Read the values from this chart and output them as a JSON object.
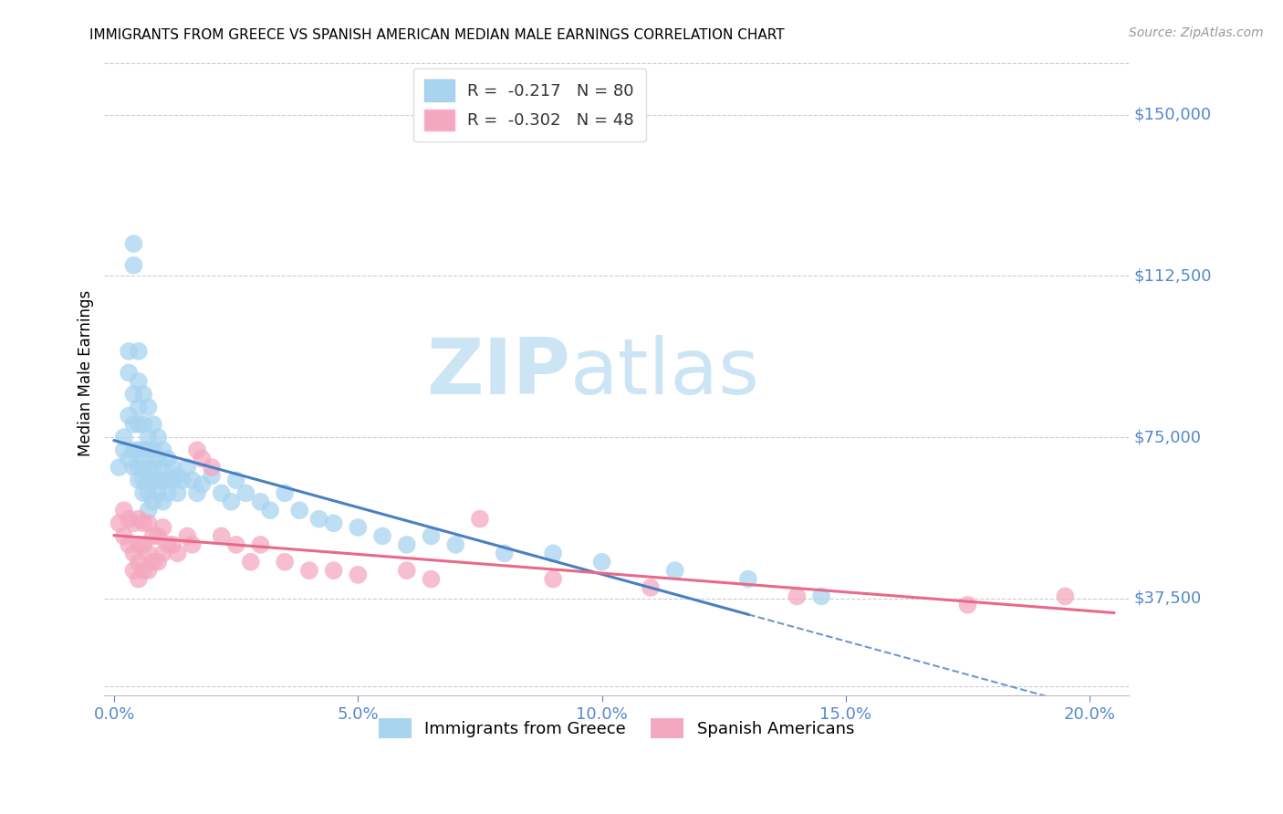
{
  "title": "IMMIGRANTS FROM GREECE VS SPANISH AMERICAN MEDIAN MALE EARNINGS CORRELATION CHART",
  "source": "Source: ZipAtlas.com",
  "ylabel": "Median Male Earnings",
  "xlabel_ticks": [
    "0.0%",
    "5.0%",
    "10.0%",
    "15.0%",
    "20.0%"
  ],
  "xlabel_vals": [
    0.0,
    0.05,
    0.1,
    0.15,
    0.2
  ],
  "ytick_labels": [
    "$37,500",
    "$75,000",
    "$112,500",
    "$150,000"
  ],
  "ytick_vals": [
    37500,
    75000,
    112500,
    150000
  ],
  "ymin": 15000,
  "ymax": 165000,
  "xmin": -0.002,
  "xmax": 0.208,
  "blue_color": "#a8d4f0",
  "pink_color": "#f4a8c0",
  "blue_line_color": "#4a7fc1",
  "pink_line_color": "#e8698a",
  "axis_color": "#5588cc",
  "greece_x": [
    0.001,
    0.002,
    0.002,
    0.003,
    0.003,
    0.003,
    0.003,
    0.004,
    0.004,
    0.004,
    0.004,
    0.004,
    0.004,
    0.005,
    0.005,
    0.005,
    0.005,
    0.005,
    0.005,
    0.005,
    0.006,
    0.006,
    0.006,
    0.006,
    0.006,
    0.006,
    0.007,
    0.007,
    0.007,
    0.007,
    0.007,
    0.007,
    0.007,
    0.008,
    0.008,
    0.008,
    0.008,
    0.008,
    0.009,
    0.009,
    0.009,
    0.009,
    0.01,
    0.01,
    0.01,
    0.01,
    0.011,
    0.011,
    0.011,
    0.012,
    0.012,
    0.013,
    0.013,
    0.014,
    0.015,
    0.016,
    0.017,
    0.018,
    0.02,
    0.022,
    0.024,
    0.025,
    0.027,
    0.03,
    0.032,
    0.035,
    0.038,
    0.042,
    0.045,
    0.05,
    0.055,
    0.06,
    0.065,
    0.07,
    0.08,
    0.09,
    0.1,
    0.115,
    0.13,
    0.145
  ],
  "greece_y": [
    68000,
    75000,
    72000,
    90000,
    95000,
    80000,
    70000,
    115000,
    120000,
    85000,
    78000,
    72000,
    68000,
    95000,
    88000,
    82000,
    78000,
    72000,
    68000,
    65000,
    85000,
    78000,
    72000,
    68000,
    65000,
    62000,
    82000,
    75000,
    72000,
    68000,
    65000,
    62000,
    58000,
    78000,
    72000,
    68000,
    65000,
    60000,
    75000,
    70000,
    65000,
    62000,
    72000,
    68000,
    65000,
    60000,
    70000,
    65000,
    62000,
    68000,
    65000,
    66000,
    62000,
    65000,
    68000,
    65000,
    62000,
    64000,
    66000,
    62000,
    60000,
    65000,
    62000,
    60000,
    58000,
    62000,
    58000,
    56000,
    55000,
    54000,
    52000,
    50000,
    52000,
    50000,
    48000,
    48000,
    46000,
    44000,
    42000,
    38000
  ],
  "spanish_x": [
    0.001,
    0.002,
    0.002,
    0.003,
    0.003,
    0.004,
    0.004,
    0.004,
    0.005,
    0.005,
    0.005,
    0.005,
    0.006,
    0.006,
    0.006,
    0.007,
    0.007,
    0.007,
    0.008,
    0.008,
    0.009,
    0.009,
    0.01,
    0.01,
    0.011,
    0.012,
    0.013,
    0.015,
    0.016,
    0.017,
    0.018,
    0.02,
    0.022,
    0.025,
    0.028,
    0.03,
    0.035,
    0.04,
    0.045,
    0.05,
    0.06,
    0.065,
    0.075,
    0.09,
    0.11,
    0.14,
    0.175,
    0.195
  ],
  "spanish_y": [
    55000,
    58000,
    52000,
    56000,
    50000,
    55000,
    48000,
    44000,
    56000,
    50000,
    46000,
    42000,
    55000,
    50000,
    44000,
    55000,
    48000,
    44000,
    52000,
    46000,
    52000,
    46000,
    54000,
    48000,
    50000,
    50000,
    48000,
    52000,
    50000,
    72000,
    70000,
    68000,
    52000,
    50000,
    46000,
    50000,
    46000,
    44000,
    44000,
    43000,
    44000,
    42000,
    56000,
    42000,
    40000,
    38000,
    36000,
    38000
  ]
}
